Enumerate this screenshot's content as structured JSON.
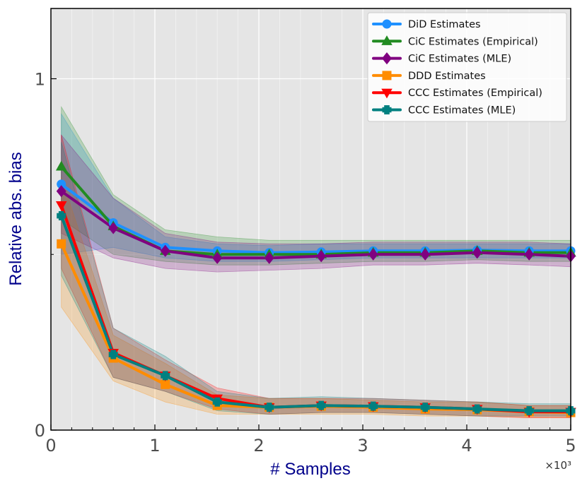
{
  "chart_data": {
    "type": "line",
    "title": "",
    "xlabel": "# Samples",
    "ylabel": "Relative abs. bias",
    "x_offset_label": "×10³",
    "xlim": [
      0,
      5
    ],
    "ylim": [
      0,
      1.2
    ],
    "grid": true,
    "legend_position": "top-right",
    "x_ticks": [
      {
        "value": 0,
        "label": "0"
      },
      {
        "value": 1,
        "label": "1"
      },
      {
        "value": 2,
        "label": "2"
      },
      {
        "value": 3,
        "label": "3"
      },
      {
        "value": 4,
        "label": "4"
      },
      {
        "value": 5,
        "label": "5"
      }
    ],
    "y_ticks": [
      {
        "value": 0,
        "label": "0"
      },
      {
        "value": 1,
        "label": "1"
      }
    ],
    "x": [
      0.1,
      0.6,
      1.1,
      1.6,
      2.1,
      2.6,
      3.1,
      3.6,
      4.1,
      4.6,
      5.0
    ],
    "series": [
      {
        "name": "DiD Estimates",
        "color": "#1e90ff",
        "marker": "circle",
        "values": [
          0.7,
          0.59,
          0.52,
          0.51,
          0.505,
          0.507,
          0.51,
          0.51,
          0.512,
          0.51,
          0.51
        ],
        "lower": [
          0.5,
          0.52,
          0.49,
          0.48,
          0.48,
          0.485,
          0.49,
          0.49,
          0.49,
          0.49,
          0.49
        ],
        "upper": [
          0.9,
          0.66,
          0.55,
          0.53,
          0.525,
          0.53,
          0.53,
          0.53,
          0.53,
          0.53,
          0.53
        ]
      },
      {
        "name": "CiC Estimates (Empirical)",
        "color": "#228b22",
        "marker": "triangle-up",
        "values": [
          0.75,
          0.58,
          0.51,
          0.5,
          0.5,
          0.5,
          0.505,
          0.505,
          0.51,
          0.505,
          0.505
        ],
        "lower": [
          0.6,
          0.5,
          0.48,
          0.47,
          0.47,
          0.475,
          0.48,
          0.48,
          0.485,
          0.48,
          0.48
        ],
        "upper": [
          0.92,
          0.67,
          0.57,
          0.55,
          0.54,
          0.54,
          0.54,
          0.54,
          0.54,
          0.54,
          0.54
        ]
      },
      {
        "name": "CiC Estimates (MLE)",
        "color": "#800080",
        "marker": "diamond",
        "values": [
          0.68,
          0.575,
          0.51,
          0.49,
          0.49,
          0.495,
          0.5,
          0.5,
          0.505,
          0.5,
          0.495
        ],
        "lower": [
          0.56,
          0.49,
          0.46,
          0.45,
          0.455,
          0.46,
          0.47,
          0.47,
          0.475,
          0.47,
          0.465
        ],
        "upper": [
          0.84,
          0.66,
          0.56,
          0.535,
          0.53,
          0.53,
          0.535,
          0.535,
          0.535,
          0.535,
          0.53
        ]
      },
      {
        "name": "DDD Estimates",
        "color": "#ff8c00",
        "marker": "square",
        "values": [
          0.53,
          0.205,
          0.13,
          0.07,
          0.065,
          0.068,
          0.065,
          0.06,
          0.058,
          0.052,
          0.05
        ],
        "lower": [
          0.35,
          0.14,
          0.08,
          0.045,
          0.045,
          0.045,
          0.045,
          0.04,
          0.04,
          0.035,
          0.035
        ],
        "upper": [
          0.72,
          0.27,
          0.19,
          0.1,
          0.09,
          0.09,
          0.085,
          0.08,
          0.08,
          0.07,
          0.07
        ]
      },
      {
        "name": "CCC Estimates (Empirical)",
        "color": "#ff0000",
        "marker": "triangle-down",
        "values": [
          0.64,
          0.22,
          0.155,
          0.09,
          0.065,
          0.07,
          0.068,
          0.065,
          0.06,
          0.052,
          0.052
        ],
        "lower": [
          0.46,
          0.15,
          0.11,
          0.06,
          0.045,
          0.05,
          0.05,
          0.045,
          0.04,
          0.035,
          0.035
        ],
        "upper": [
          0.84,
          0.29,
          0.2,
          0.12,
          0.09,
          0.09,
          0.09,
          0.085,
          0.08,
          0.07,
          0.07
        ]
      },
      {
        "name": "CCC Estimates (MLE)",
        "color": "#008080",
        "marker": "plus",
        "values": [
          0.61,
          0.215,
          0.155,
          0.08,
          0.065,
          0.07,
          0.068,
          0.065,
          0.06,
          0.055,
          0.055
        ],
        "lower": [
          0.44,
          0.15,
          0.11,
          0.055,
          0.045,
          0.05,
          0.05,
          0.045,
          0.04,
          0.04,
          0.04
        ],
        "upper": [
          0.82,
          0.29,
          0.21,
          0.11,
          0.09,
          0.095,
          0.09,
          0.085,
          0.08,
          0.075,
          0.075
        ]
      }
    ]
  }
}
